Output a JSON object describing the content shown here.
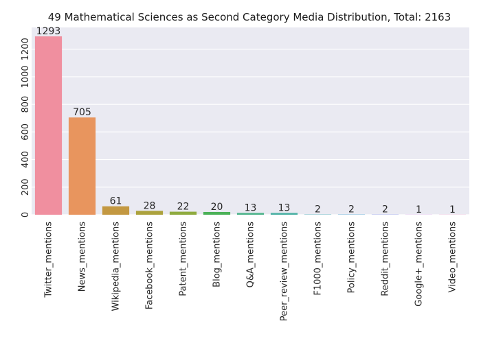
{
  "chart_data": {
    "type": "bar",
    "title": "49 Mathematical Sciences as Second Category Media Distribution, Total: 2163",
    "xlabel": "",
    "ylabel": "",
    "categories": [
      "Twitter_mentions",
      "News_mentions",
      "Wikipedia_mentions",
      "Facebook_mentions",
      "Patent_mentions",
      "Blog_mentions",
      "Q&A_mentions",
      "Peer_review_mentions",
      "F1000_mentions",
      "Policy_mentions",
      "Reddit_mentions",
      "Google+_mentions",
      "Video_mentions"
    ],
    "values": [
      1293,
      705,
      61,
      28,
      22,
      20,
      13,
      13,
      2,
      2,
      2,
      1,
      1
    ],
    "data_labels": [
      "1293",
      "705",
      "61",
      "28",
      "22",
      "20",
      "13",
      "13",
      "2",
      "2",
      "2",
      "1",
      "1"
    ],
    "colors": [
      "#f08f9f",
      "#e8955e",
      "#c39841",
      "#aca23d",
      "#8fab3f",
      "#4bb158",
      "#4db38a",
      "#4ab0a3",
      "#4cadb8",
      "#53a8d4",
      "#9ba3eb",
      "#d690e8",
      "#ec8ac6"
    ],
    "yticks": [
      0,
      200,
      400,
      600,
      800,
      1000,
      1200
    ],
    "ytick_labels": [
      "0",
      "200",
      "400",
      "600",
      "800",
      "1000",
      "1200"
    ],
    "ylim": [
      0,
      1357.65
    ],
    "grid": true,
    "background": "#eaeaf2"
  }
}
